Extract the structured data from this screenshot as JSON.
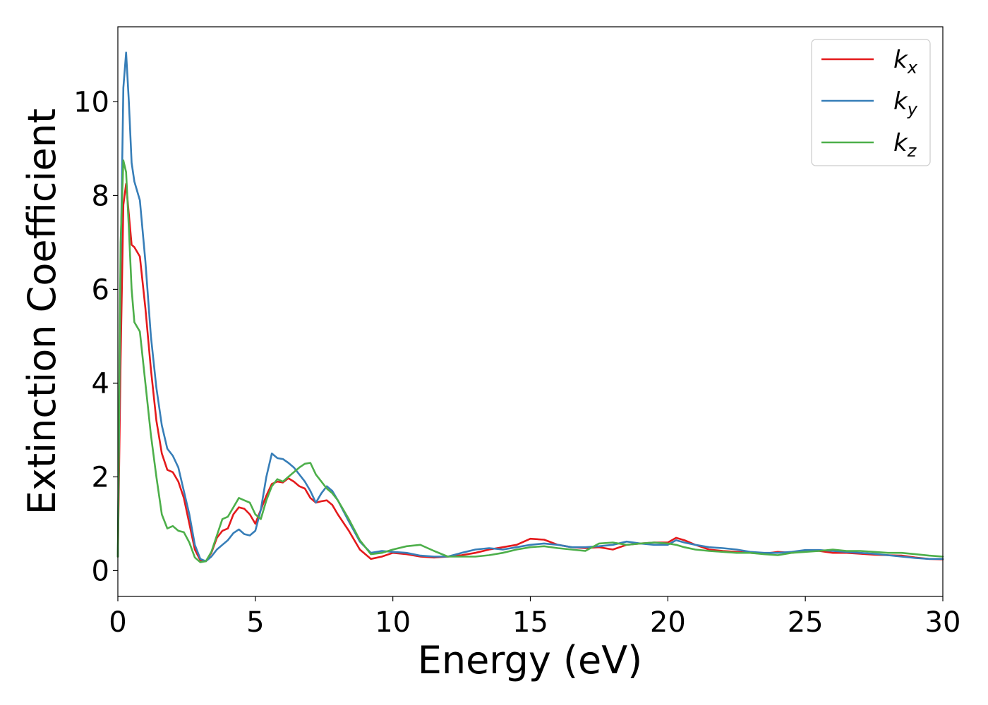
{
  "chart_data": {
    "type": "line",
    "title": "",
    "xlabel": "Energy (eV)",
    "ylabel": "Extinction Coefficient",
    "xlim": [
      0,
      30
    ],
    "ylim": [
      -0.55,
      11.6
    ],
    "xticks": [
      0,
      5,
      10,
      15,
      20,
      25,
      30
    ],
    "yticks": [
      0,
      2,
      4,
      6,
      8,
      10
    ],
    "grid": false,
    "legend_position": "top-right",
    "series": [
      {
        "name": "k",
        "subscript": "x",
        "color": "#e41a1c",
        "x": [
          0,
          0.1,
          0.2,
          0.3,
          0.4,
          0.5,
          0.6,
          0.8,
          1.0,
          1.2,
          1.4,
          1.6,
          1.8,
          2.0,
          2.2,
          2.4,
          2.6,
          2.8,
          3.0,
          3.2,
          3.4,
          3.6,
          3.8,
          4.0,
          4.2,
          4.4,
          4.6,
          4.8,
          5.0,
          5.2,
          5.4,
          5.6,
          5.8,
          6.0,
          6.2,
          6.4,
          6.6,
          6.8,
          7.0,
          7.2,
          7.4,
          7.6,
          7.8,
          8.0,
          8.4,
          8.8,
          9.2,
          9.6,
          10.0,
          10.5,
          11.0,
          11.5,
          12.0,
          12.5,
          13.0,
          13.5,
          14.0,
          14.5,
          15.0,
          15.5,
          16.0,
          16.5,
          17.0,
          17.5,
          18.0,
          18.5,
          19.0,
          19.5,
          20.0,
          20.3,
          20.6,
          21.0,
          21.5,
          22.0,
          22.5,
          23.0,
          23.5,
          24.0,
          24.5,
          25.0,
          25.5,
          26.0,
          26.5,
          27.0,
          27.5,
          28.0,
          28.5,
          29.0,
          29.5,
          30.0
        ],
        "y": [
          0.3,
          4.5,
          7.8,
          8.25,
          7.6,
          6.95,
          6.9,
          6.7,
          5.6,
          4.3,
          3.2,
          2.5,
          2.15,
          2.1,
          1.9,
          1.55,
          1.0,
          0.45,
          0.22,
          0.2,
          0.38,
          0.7,
          0.85,
          0.9,
          1.2,
          1.35,
          1.32,
          1.2,
          1.0,
          1.3,
          1.6,
          1.85,
          1.9,
          1.88,
          1.97,
          1.9,
          1.8,
          1.75,
          1.55,
          1.45,
          1.48,
          1.5,
          1.4,
          1.2,
          0.85,
          0.45,
          0.25,
          0.3,
          0.38,
          0.35,
          0.3,
          0.28,
          0.3,
          0.33,
          0.38,
          0.45,
          0.5,
          0.55,
          0.68,
          0.66,
          0.55,
          0.5,
          0.48,
          0.5,
          0.45,
          0.55,
          0.58,
          0.6,
          0.6,
          0.7,
          0.65,
          0.55,
          0.45,
          0.42,
          0.4,
          0.38,
          0.36,
          0.4,
          0.38,
          0.42,
          0.42,
          0.38,
          0.38,
          0.36,
          0.34,
          0.33,
          0.32,
          0.28,
          0.25,
          0.24
        ]
      },
      {
        "name": "k",
        "subscript": "y",
        "color": "#377eb8",
        "x": [
          0,
          0.1,
          0.2,
          0.3,
          0.4,
          0.5,
          0.6,
          0.8,
          1.0,
          1.2,
          1.4,
          1.6,
          1.8,
          2.0,
          2.2,
          2.4,
          2.6,
          2.8,
          3.0,
          3.2,
          3.4,
          3.6,
          3.8,
          4.0,
          4.2,
          4.4,
          4.6,
          4.8,
          5.0,
          5.2,
          5.4,
          5.6,
          5.8,
          6.0,
          6.2,
          6.4,
          6.6,
          6.8,
          7.0,
          7.2,
          7.4,
          7.6,
          7.8,
          8.0,
          8.4,
          8.8,
          9.2,
          9.6,
          10.0,
          10.5,
          11.0,
          11.5,
          12.0,
          12.5,
          13.0,
          13.5,
          14.0,
          14.5,
          15.0,
          15.5,
          16.0,
          16.5,
          17.0,
          17.5,
          18.0,
          18.5,
          19.0,
          19.5,
          20.0,
          20.3,
          20.6,
          21.0,
          21.5,
          22.0,
          22.5,
          23.0,
          23.5,
          24.0,
          24.5,
          25.0,
          25.5,
          26.0,
          26.5,
          27.0,
          27.5,
          28.0,
          28.5,
          29.0,
          29.5,
          30.0
        ],
        "y": [
          0.3,
          6.5,
          10.3,
          11.05,
          10.0,
          8.7,
          8.3,
          7.9,
          6.6,
          5.0,
          3.9,
          3.1,
          2.6,
          2.45,
          2.2,
          1.7,
          1.2,
          0.55,
          0.25,
          0.2,
          0.3,
          0.45,
          0.55,
          0.65,
          0.8,
          0.88,
          0.78,
          0.75,
          0.85,
          1.3,
          2.0,
          2.5,
          2.4,
          2.38,
          2.3,
          2.2,
          2.05,
          1.9,
          1.7,
          1.45,
          1.65,
          1.8,
          1.7,
          1.5,
          1.05,
          0.62,
          0.38,
          0.42,
          0.4,
          0.38,
          0.32,
          0.3,
          0.3,
          0.38,
          0.45,
          0.48,
          0.45,
          0.5,
          0.55,
          0.58,
          0.55,
          0.5,
          0.5,
          0.52,
          0.55,
          0.62,
          0.58,
          0.55,
          0.55,
          0.65,
          0.6,
          0.55,
          0.5,
          0.48,
          0.45,
          0.4,
          0.38,
          0.38,
          0.4,
          0.44,
          0.44,
          0.42,
          0.4,
          0.38,
          0.36,
          0.33,
          0.3,
          0.27,
          0.25,
          0.25
        ]
      },
      {
        "name": "k",
        "subscript": "z",
        "color": "#4daf4a",
        "x": [
          0,
          0.1,
          0.2,
          0.3,
          0.4,
          0.5,
          0.6,
          0.8,
          1.0,
          1.2,
          1.4,
          1.6,
          1.8,
          2.0,
          2.2,
          2.4,
          2.6,
          2.8,
          3.0,
          3.2,
          3.4,
          3.6,
          3.8,
          4.0,
          4.2,
          4.4,
          4.6,
          4.8,
          5.0,
          5.2,
          5.4,
          5.6,
          5.8,
          6.0,
          6.2,
          6.4,
          6.6,
          6.8,
          7.0,
          7.2,
          7.4,
          7.6,
          7.8,
          8.0,
          8.4,
          8.8,
          9.2,
          9.6,
          10.0,
          10.5,
          11.0,
          11.5,
          12.0,
          12.5,
          13.0,
          13.5,
          14.0,
          14.5,
          15.0,
          15.5,
          16.0,
          16.5,
          17.0,
          17.5,
          18.0,
          18.5,
          19.0,
          19.5,
          20.0,
          20.3,
          20.6,
          21.0,
          21.5,
          22.0,
          22.5,
          23.0,
          23.5,
          24.0,
          24.5,
          25.0,
          25.5,
          26.0,
          26.5,
          27.0,
          27.5,
          28.0,
          28.5,
          29.0,
          29.5,
          30.0
        ],
        "y": [
          0.3,
          7.0,
          8.75,
          8.5,
          7.3,
          6.0,
          5.3,
          5.1,
          4.0,
          2.9,
          2.0,
          1.2,
          0.9,
          0.95,
          0.85,
          0.82,
          0.6,
          0.28,
          0.18,
          0.2,
          0.4,
          0.75,
          1.1,
          1.15,
          1.35,
          1.55,
          1.5,
          1.45,
          1.2,
          1.1,
          1.5,
          1.8,
          1.95,
          1.9,
          2.0,
          2.1,
          2.2,
          2.28,
          2.3,
          2.05,
          1.9,
          1.75,
          1.65,
          1.5,
          1.1,
          0.65,
          0.35,
          0.38,
          0.45,
          0.52,
          0.55,
          0.42,
          0.3,
          0.3,
          0.3,
          0.33,
          0.38,
          0.45,
          0.5,
          0.52,
          0.48,
          0.45,
          0.42,
          0.58,
          0.6,
          0.55,
          0.58,
          0.6,
          0.58,
          0.55,
          0.5,
          0.45,
          0.42,
          0.4,
          0.38,
          0.38,
          0.35,
          0.33,
          0.38,
          0.4,
          0.42,
          0.45,
          0.42,
          0.42,
          0.4,
          0.38,
          0.38,
          0.35,
          0.32,
          0.3
        ]
      }
    ]
  }
}
